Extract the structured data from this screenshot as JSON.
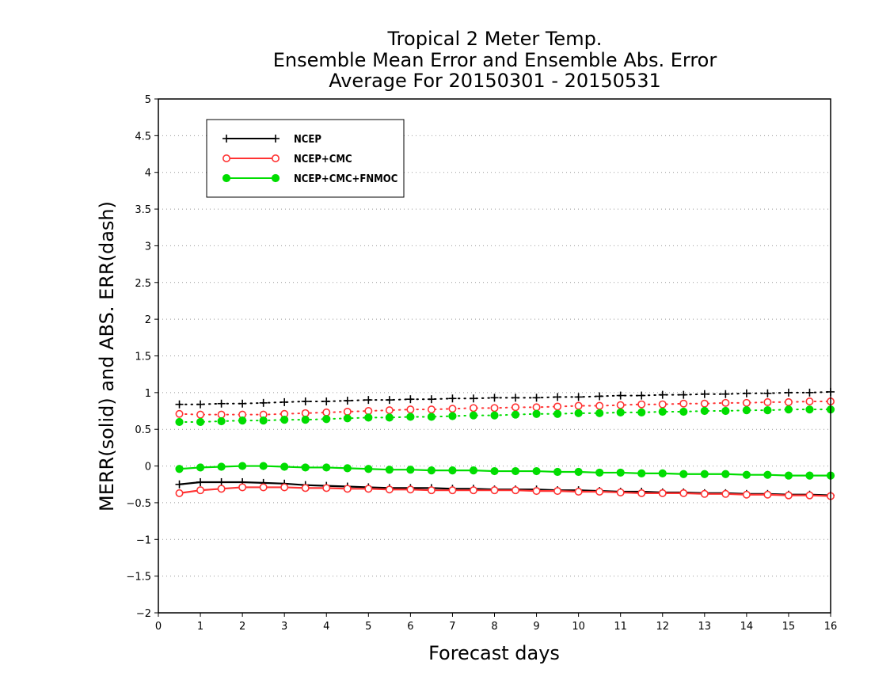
{
  "chart_data": {
    "type": "line",
    "title_lines": [
      "Tropical 2 Meter Temp.",
      "Ensemble Mean Error and Ensemble Abs. Error",
      "Average For 20150301 - 20150531"
    ],
    "xlabel": "Forecast days",
    "ylabel": "MERR(solid) and ABS. ERR(dash)",
    "xlim": [
      0,
      16
    ],
    "ylim": [
      -2,
      5
    ],
    "xticks": [
      0,
      1,
      2,
      3,
      4,
      5,
      6,
      7,
      8,
      9,
      10,
      11,
      12,
      13,
      14,
      15,
      16
    ],
    "xtick_labels": [
      "0",
      "1",
      "2",
      "3",
      "4",
      "5",
      "6",
      "7",
      "8",
      "9",
      "10",
      "11",
      "12",
      "13",
      "14",
      "15",
      "16"
    ],
    "yticks": [
      -2,
      -1.5,
      -1,
      -0.5,
      0,
      0.5,
      1,
      1.5,
      2,
      2.5,
      3,
      3.5,
      4,
      4.5,
      5
    ],
    "ytick_labels": [
      "−2",
      "−1.5",
      "−1",
      "−0.5",
      "0",
      "0.5",
      "1",
      "1.5",
      "2",
      "2.5",
      "3",
      "3.5",
      "4",
      "4.5",
      "5"
    ],
    "grid": "horizontal dotted",
    "legend_position": "top-left",
    "x": [
      0.5,
      1,
      1.5,
      2,
      2.5,
      3,
      3.5,
      4,
      4.5,
      5,
      5.5,
      6,
      6.5,
      7,
      7.5,
      8,
      8.5,
      9,
      9.5,
      10,
      10.5,
      11,
      11.5,
      12,
      12.5,
      13,
      13.5,
      14,
      14.5,
      15,
      15.5,
      16
    ],
    "series": [
      {
        "name": "NCEP",
        "color": "#000000",
        "marker": "plus",
        "merr": [
          -0.25,
          -0.22,
          -0.22,
          -0.22,
          -0.23,
          -0.24,
          -0.26,
          -0.27,
          -0.28,
          -0.29,
          -0.3,
          -0.3,
          -0.3,
          -0.31,
          -0.31,
          -0.32,
          -0.32,
          -0.32,
          -0.33,
          -0.33,
          -0.34,
          -0.35,
          -0.35,
          -0.36,
          -0.36,
          -0.37,
          -0.37,
          -0.38,
          -0.38,
          -0.39,
          -0.39,
          -0.4
        ],
        "abs_err": [
          0.84,
          0.84,
          0.85,
          0.85,
          0.86,
          0.87,
          0.88,
          0.88,
          0.89,
          0.9,
          0.9,
          0.91,
          0.91,
          0.92,
          0.92,
          0.93,
          0.93,
          0.93,
          0.94,
          0.94,
          0.95,
          0.96,
          0.96,
          0.97,
          0.97,
          0.98,
          0.98,
          0.99,
          0.99,
          1.0,
          1.0,
          1.01
        ]
      },
      {
        "name": "NCEP+CMC",
        "color": "#ff3333",
        "marker": "open-circle",
        "merr": [
          -0.37,
          -0.33,
          -0.31,
          -0.29,
          -0.29,
          -0.29,
          -0.3,
          -0.3,
          -0.31,
          -0.31,
          -0.32,
          -0.32,
          -0.33,
          -0.33,
          -0.33,
          -0.33,
          -0.33,
          -0.34,
          -0.34,
          -0.35,
          -0.35,
          -0.36,
          -0.37,
          -0.37,
          -0.37,
          -0.38,
          -0.38,
          -0.39,
          -0.39,
          -0.4,
          -0.4,
          -0.41
        ],
        "abs_err": [
          0.71,
          0.7,
          0.7,
          0.7,
          0.7,
          0.71,
          0.72,
          0.73,
          0.74,
          0.75,
          0.76,
          0.77,
          0.77,
          0.78,
          0.79,
          0.79,
          0.8,
          0.8,
          0.81,
          0.82,
          0.82,
          0.83,
          0.84,
          0.84,
          0.85,
          0.85,
          0.86,
          0.86,
          0.87,
          0.87,
          0.88,
          0.88
        ]
      },
      {
        "name": "NCEP+CMC+FNMOC",
        "color": "#00dd00",
        "marker": "filled-circle",
        "merr": [
          -0.04,
          -0.02,
          -0.01,
          0.0,
          0.0,
          -0.01,
          -0.02,
          -0.02,
          -0.03,
          -0.04,
          -0.05,
          -0.05,
          -0.06,
          -0.06,
          -0.06,
          -0.07,
          -0.07,
          -0.07,
          -0.08,
          -0.08,
          -0.09,
          -0.09,
          -0.1,
          -0.1,
          -0.11,
          -0.11,
          -0.11,
          -0.12,
          -0.12,
          -0.13,
          -0.13,
          -0.13
        ],
        "abs_err": [
          0.6,
          0.6,
          0.61,
          0.62,
          0.62,
          0.63,
          0.63,
          0.64,
          0.65,
          0.66,
          0.66,
          0.67,
          0.67,
          0.68,
          0.69,
          0.69,
          0.7,
          0.71,
          0.71,
          0.72,
          0.72,
          0.73,
          0.73,
          0.74,
          0.74,
          0.75,
          0.75,
          0.76,
          0.76,
          0.77,
          0.77,
          0.77
        ]
      }
    ]
  }
}
